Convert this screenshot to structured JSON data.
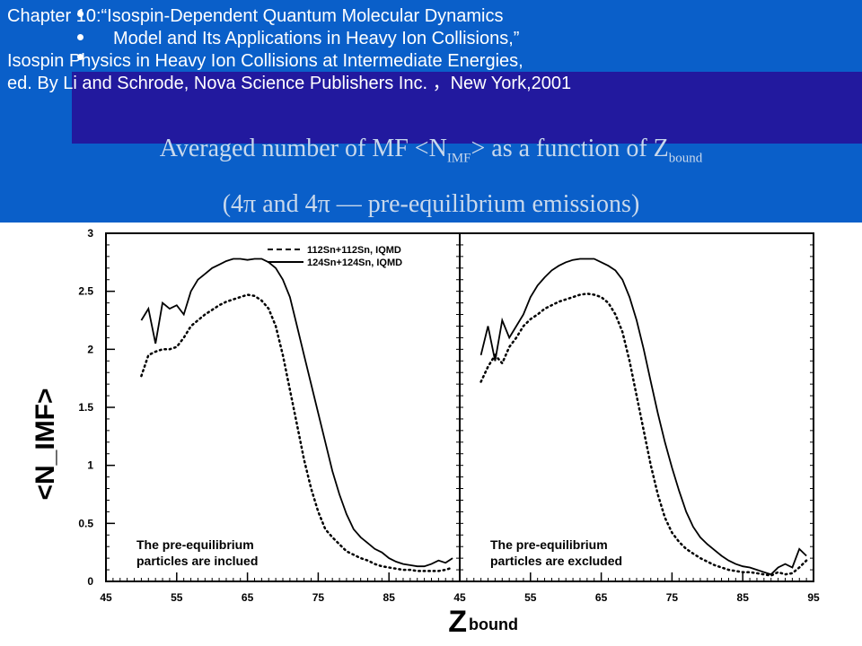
{
  "header": {
    "ref_lines": [
      "Chapter 10:“Isospin-Dependent Quantum Molecular Dynamics",
      "Model and Its Applications in Heavy Ion Collisions,”",
      "Isospin Physics in Heavy Ion Collisions at Intermediate Energies,",
      "ed. By Li and Schrode, Nova Science Publishers Inc. ，New York,2001"
    ],
    "title_line1": {
      "pre": "Averaged number of MF <N",
      "sub1": "IMF",
      "mid": "> as a function of Z",
      "sub2": "bound"
    },
    "title_line2": "(4π and 4π — pre-equilibrium emissions)"
  },
  "chart_data": [
    {
      "type": "line",
      "panel": "left",
      "ylabel": "<N_IMF>",
      "xlabel": "Z_bound",
      "xlim": [
        45,
        95
      ],
      "ylim": [
        0,
        3
      ],
      "x_ticks": [
        "45",
        "55",
        "65",
        "75",
        "85"
      ],
      "y_ticks": [
        "0",
        "0.5",
        "1",
        "1.5",
        "2",
        "2.5",
        "3"
      ],
      "legend": [
        "112Sn+112Sn, IQMD",
        "124Sn+124Sn, IQMD"
      ],
      "legend_placement": "top-right",
      "annotation": [
        "The pre-equilibrium",
        "particles are inclued"
      ],
      "series": [
        {
          "name": "112Sn+112Sn, IQMD",
          "style": "dotted",
          "x": [
            50,
            51,
            52,
            53,
            54,
            55,
            56,
            57,
            58,
            59,
            60,
            61,
            62,
            63,
            64,
            65,
            66,
            67,
            68,
            69,
            70,
            71,
            72,
            73,
            74,
            75,
            76,
            77,
            78,
            79,
            80,
            81,
            82,
            83,
            84,
            85,
            86,
            87,
            88,
            89,
            90,
            91,
            92,
            93,
            94
          ],
          "y": [
            1.77,
            1.95,
            1.98,
            2.0,
            2.0,
            2.02,
            2.1,
            2.2,
            2.25,
            2.3,
            2.34,
            2.38,
            2.41,
            2.43,
            2.45,
            2.47,
            2.46,
            2.42,
            2.35,
            2.2,
            1.95,
            1.65,
            1.35,
            1.05,
            0.8,
            0.6,
            0.45,
            0.38,
            0.32,
            0.26,
            0.23,
            0.2,
            0.18,
            0.15,
            0.13,
            0.12,
            0.11,
            0.1,
            0.1,
            0.09,
            0.09,
            0.09,
            0.09,
            0.1,
            0.12
          ]
        },
        {
          "name": "124Sn+124Sn, IQMD",
          "style": "solid",
          "x": [
            50,
            51,
            52,
            53,
            54,
            55,
            56,
            57,
            58,
            59,
            60,
            61,
            62,
            63,
            64,
            65,
            66,
            67,
            68,
            69,
            70,
            71,
            72,
            73,
            74,
            75,
            76,
            77,
            78,
            79,
            80,
            81,
            82,
            83,
            84,
            85,
            86,
            87,
            88,
            89,
            90,
            91,
            92,
            93,
            94
          ],
          "y": [
            2.25,
            2.35,
            2.05,
            2.4,
            2.35,
            2.38,
            2.3,
            2.5,
            2.6,
            2.65,
            2.7,
            2.73,
            2.76,
            2.78,
            2.78,
            2.77,
            2.78,
            2.78,
            2.75,
            2.7,
            2.6,
            2.45,
            2.2,
            1.95,
            1.7,
            1.45,
            1.2,
            0.95,
            0.75,
            0.58,
            0.45,
            0.38,
            0.33,
            0.28,
            0.25,
            0.2,
            0.17,
            0.15,
            0.14,
            0.13,
            0.13,
            0.15,
            0.18,
            0.16,
            0.2
          ]
        }
      ]
    },
    {
      "type": "line",
      "panel": "right",
      "xlim": [
        45,
        95
      ],
      "ylim": [
        0,
        3
      ],
      "x_ticks": [
        "45",
        "55",
        "65",
        "75",
        "85",
        "95"
      ],
      "annotation": [
        "The pre-equilibrium",
        "particles are excluded"
      ],
      "series": [
        {
          "name": "112Sn+112Sn, IQMD",
          "style": "dotted",
          "x": [
            48,
            49,
            50,
            51,
            52,
            53,
            54,
            55,
            56,
            57,
            58,
            59,
            60,
            61,
            62,
            63,
            64,
            65,
            66,
            67,
            68,
            69,
            70,
            71,
            72,
            73,
            74,
            75,
            76,
            77,
            78,
            79,
            80,
            81,
            82,
            83,
            84,
            85,
            86,
            87,
            88,
            89,
            90,
            91,
            92,
            93,
            94
          ],
          "y": [
            1.72,
            1.85,
            1.95,
            1.88,
            2.02,
            2.1,
            2.2,
            2.26,
            2.3,
            2.35,
            2.38,
            2.41,
            2.43,
            2.45,
            2.47,
            2.48,
            2.47,
            2.45,
            2.4,
            2.3,
            2.15,
            1.9,
            1.6,
            1.3,
            1.0,
            0.75,
            0.55,
            0.42,
            0.34,
            0.28,
            0.24,
            0.2,
            0.17,
            0.14,
            0.12,
            0.1,
            0.09,
            0.08,
            0.08,
            0.07,
            0.06,
            0.05,
            0.08,
            0.06,
            0.07,
            0.12,
            0.18
          ]
        },
        {
          "name": "124Sn+124Sn, IQMD",
          "style": "solid",
          "x": [
            48,
            49,
            50,
            51,
            52,
            53,
            54,
            55,
            56,
            57,
            58,
            59,
            60,
            61,
            62,
            63,
            64,
            65,
            66,
            67,
            68,
            69,
            70,
            71,
            72,
            73,
            74,
            75,
            76,
            77,
            78,
            79,
            80,
            81,
            82,
            83,
            84,
            85,
            86,
            87,
            88,
            89,
            90,
            91,
            92,
            93,
            94
          ],
          "y": [
            1.95,
            2.2,
            1.9,
            2.25,
            2.1,
            2.2,
            2.3,
            2.45,
            2.55,
            2.62,
            2.68,
            2.72,
            2.75,
            2.77,
            2.78,
            2.78,
            2.78,
            2.75,
            2.72,
            2.68,
            2.6,
            2.45,
            2.25,
            2.0,
            1.72,
            1.45,
            1.2,
            0.98,
            0.78,
            0.6,
            0.47,
            0.38,
            0.32,
            0.27,
            0.22,
            0.18,
            0.15,
            0.13,
            0.12,
            0.1,
            0.08,
            0.06,
            0.12,
            0.15,
            0.12,
            0.28,
            0.22
          ]
        }
      ]
    }
  ]
}
